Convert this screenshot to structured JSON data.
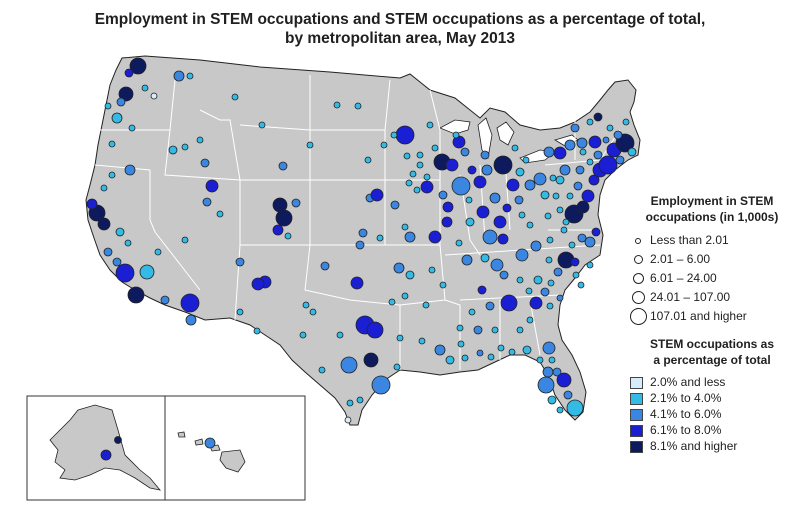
{
  "title": {
    "line1": "Employment in STEM occupations and STEM occupations as a percentage of total,",
    "line2": "by metropolitan area, May 2013"
  },
  "legend": {
    "size_title_line1": "Employment in STEM",
    "size_title_line2": "occupations (in 1,000s)",
    "size_classes": [
      {
        "label": "Less than 2.01"
      },
      {
        "label": "2.01 – 6.00"
      },
      {
        "label": "6.01 – 24.00"
      },
      {
        "label": "24.01 – 107.00"
      },
      {
        "label": "107.01 and higher"
      }
    ],
    "pct_title_line1": "STEM occupations as",
    "pct_title_line2": "a percentage of total",
    "pct_classes": [
      {
        "label": "2.0% and less",
        "color": "#d6ecfa"
      },
      {
        "label": "2.1% to 4.0%",
        "color": "#33bbe6"
      },
      {
        "label": "4.1% to 6.0%",
        "color": "#3a86e0"
      },
      {
        "label": "6.1% to 8.0%",
        "color": "#1b1fd4"
      },
      {
        "label": "8.1% and higher",
        "color": "#0d1a5e"
      }
    ]
  },
  "colors": {
    "land": "#c8c8c8",
    "border": "#ffffff",
    "outline": "#222222",
    "ocean": "#ffffff"
  }
}
